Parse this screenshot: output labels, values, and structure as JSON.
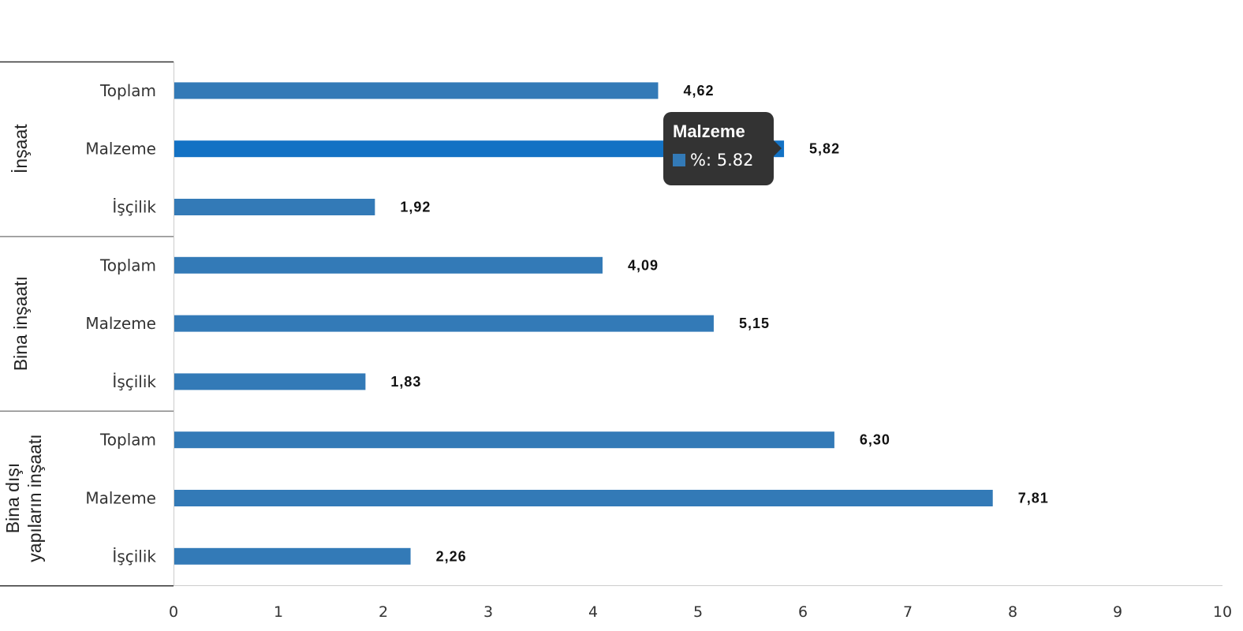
{
  "chart_data": {
    "type": "bar",
    "orientation": "horizontal",
    "xlim": [
      0,
      10
    ],
    "x_ticks": [
      "0",
      "1",
      "2",
      "3",
      "4",
      "5",
      "6",
      "7",
      "8",
      "9",
      "10"
    ],
    "grid": false,
    "bar_color": "#337ab7",
    "highlight_color": "#1372c4",
    "groups": [
      {
        "name": "İnşaat",
        "name_lines": [
          "İnşaat"
        ],
        "categories": [
          "Toplam",
          "Malzeme",
          "İşçilik"
        ],
        "values": [
          4.62,
          5.82,
          1.92
        ],
        "labels": [
          "4,62",
          "5,82",
          "1,92"
        ]
      },
      {
        "name": "Bina inşaatı",
        "name_lines": [
          "Bina inşaatı"
        ],
        "categories": [
          "Toplam",
          "Malzeme",
          "İşçilik"
        ],
        "values": [
          4.09,
          5.15,
          1.83
        ],
        "labels": [
          "4,09",
          "5,15",
          "1,83"
        ]
      },
      {
        "name": "Bina dışı yapıların inşaatı",
        "name_lines": [
          "Bina dışı",
          "yapıların inşaatı"
        ],
        "categories": [
          "Toplam",
          "Malzeme",
          "İşçilik"
        ],
        "values": [
          6.3,
          7.81,
          2.26
        ],
        "labels": [
          "6,30",
          "7,81",
          "2,26"
        ]
      }
    ],
    "highlighted": {
      "group": 0,
      "index": 1
    }
  },
  "tooltip": {
    "title": "Malzeme",
    "text": "%: 5.82",
    "swatch_color": "#337ab7"
  }
}
